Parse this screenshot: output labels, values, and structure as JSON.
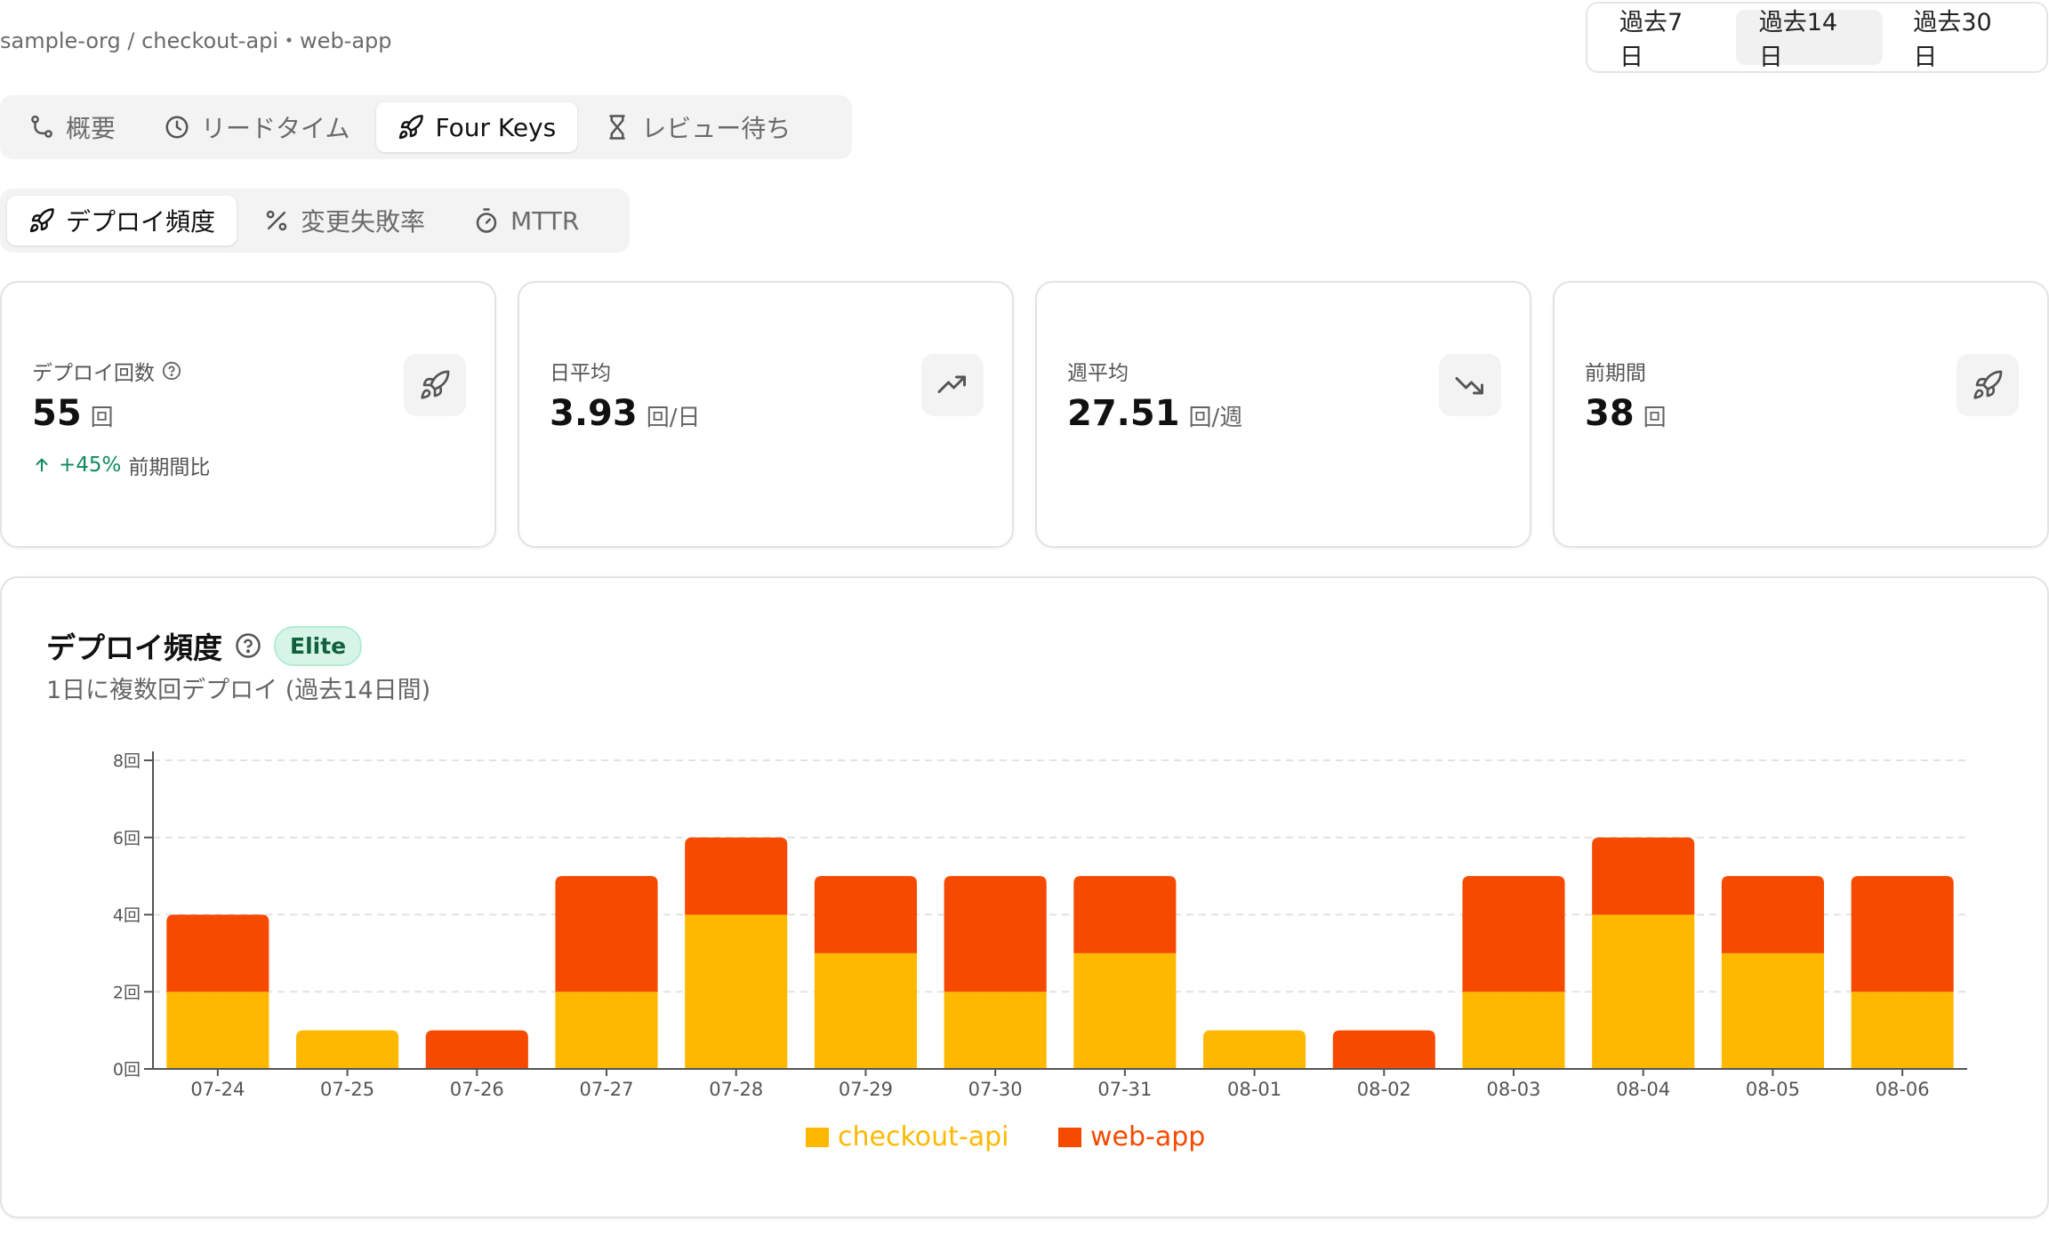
{
  "breadcrumb": "sample-org / checkout-api・web-app",
  "range": [
    "過去7日",
    "過去14日",
    "過去30日"
  ],
  "range_active": 1,
  "tabs": [
    {
      "label": "概要",
      "icon": "git-branch-icon"
    },
    {
      "label": "リードタイム",
      "icon": "clock-icon"
    },
    {
      "label": "Four Keys",
      "icon": "rocket-icon"
    },
    {
      "label": "レビュー待ち",
      "icon": "hourglass-icon"
    }
  ],
  "tabs_active": 2,
  "subtabs": [
    {
      "label": "デプロイ頻度",
      "icon": "rocket-icon"
    },
    {
      "label": "変更失敗率",
      "icon": "percent-icon"
    },
    {
      "label": "MTTR",
      "icon": "stopwatch-icon"
    }
  ],
  "subtabs_active": 0,
  "cards": [
    {
      "label": "デプロイ回数",
      "value": "55",
      "unit": "回",
      "delta": "+45%",
      "delta_note": "前期間比",
      "icon": "rocket-icon"
    },
    {
      "label": "日平均",
      "value": "3.93",
      "unit": "回/日",
      "icon": "trending-up-icon"
    },
    {
      "label": "週平均",
      "value": "27.51",
      "unit": "回/週",
      "icon": "trending-down-icon"
    },
    {
      "label": "前期間",
      "value": "38",
      "unit": "回",
      "icon": "rocket-icon"
    }
  ],
  "chart_card": {
    "title": "デプロイ頻度",
    "badge": "Elite",
    "subtitle": "1日に複数回デプロイ (過去14日間)"
  },
  "colors": {
    "checkout_api": "#FFB800",
    "web_app": "#F54A00"
  },
  "chart_data": {
    "type": "bar",
    "stacked": true,
    "categories": [
      "07-24",
      "07-25",
      "07-26",
      "07-27",
      "07-28",
      "07-29",
      "07-30",
      "07-31",
      "08-01",
      "08-02",
      "08-03",
      "08-04",
      "08-05",
      "08-06"
    ],
    "series": [
      {
        "name": "checkout-api",
        "values": [
          2,
          1,
          0,
          2,
          4,
          3,
          2,
          3,
          1,
          0,
          2,
          4,
          3,
          2
        ]
      },
      {
        "name": "web-app",
        "values": [
          2,
          0,
          1,
          3,
          2,
          2,
          3,
          2,
          0,
          1,
          3,
          2,
          2,
          3
        ]
      }
    ],
    "yticks": [
      "0回",
      "2回",
      "4回",
      "6回",
      "8回"
    ],
    "ylim": [
      0,
      8
    ],
    "grid": true,
    "legend": "bottom"
  }
}
